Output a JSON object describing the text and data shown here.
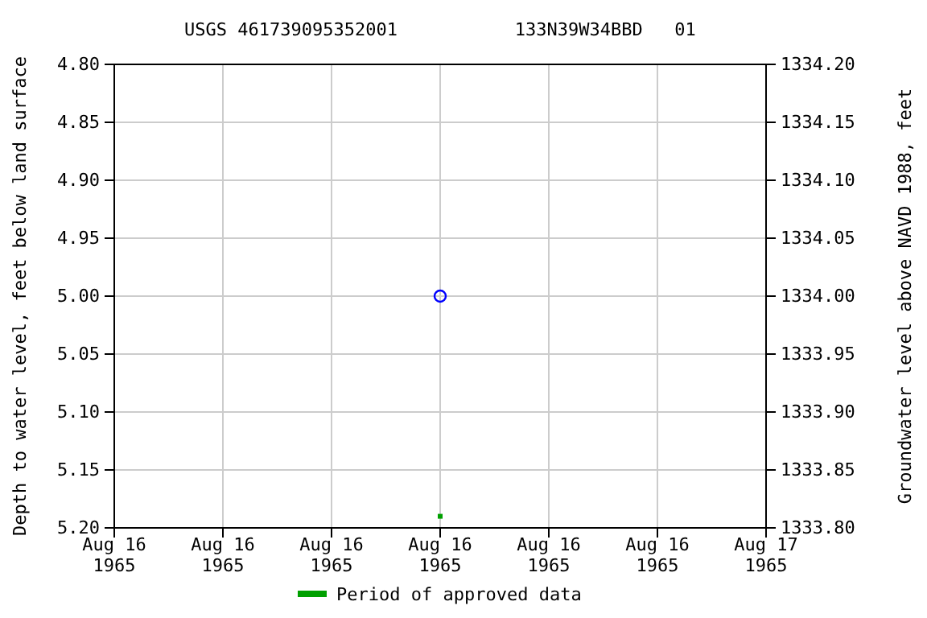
{
  "chart_data": {
    "type": "scatter",
    "title": "USGS 461739095352001           133N39W34BBD   01",
    "ylabel": "Depth to water level, feet below land surface",
    "y2label": "Groundwater level above NAVD 1988, feet",
    "x": [
      "1965-08-16T12:00"
    ],
    "series": [
      {
        "color": "#0000ff",
        "values": [
          5.0
        ],
        "marker": "circle"
      },
      {
        "name": "Period of approved data",
        "color": "#00a000",
        "values": [
          5.19
        ],
        "marker": "square"
      }
    ],
    "xlim": [
      "1965-08-16T00:00",
      "1965-08-17T00:00"
    ],
    "xticks": [
      {
        "value": "1965-08-16T00:00",
        "label": "Aug 16\n1965"
      },
      {
        "value": "1965-08-16T04:00",
        "label": "Aug 16\n1965"
      },
      {
        "value": "1965-08-16T08:00",
        "label": "Aug 16\n1965"
      },
      {
        "value": "1965-08-16T12:00",
        "label": "Aug 16\n1965"
      },
      {
        "value": "1965-08-16T16:00",
        "label": "Aug 16\n1965"
      },
      {
        "value": "1965-08-16T20:00",
        "label": "Aug 16\n1965"
      },
      {
        "value": "1965-08-17T00:00",
        "label": "Aug 17\n1965"
      }
    ],
    "ylim": [
      5.2,
      4.8
    ],
    "yticks": [
      {
        "value": 4.8,
        "label": "4.80"
      },
      {
        "value": 4.85,
        "label": "4.85"
      },
      {
        "value": 4.9,
        "label": "4.90"
      },
      {
        "value": 4.95,
        "label": "4.95"
      },
      {
        "value": 5.0,
        "label": "5.00"
      },
      {
        "value": 5.05,
        "label": "5.05"
      },
      {
        "value": 5.1,
        "label": "5.10"
      },
      {
        "value": 5.15,
        "label": "5.15"
      },
      {
        "value": 5.2,
        "label": "5.20"
      }
    ],
    "y2lim": [
      1333.8,
      1334.2
    ],
    "y2ticks": [
      {
        "value": 1334.2,
        "label": "1334.20"
      },
      {
        "value": 1334.15,
        "label": "1334.15"
      },
      {
        "value": 1334.1,
        "label": "1334.10"
      },
      {
        "value": 1334.05,
        "label": "1334.05"
      },
      {
        "value": 1334.0,
        "label": "1334.00"
      },
      {
        "value": 1333.95,
        "label": "1333.95"
      },
      {
        "value": 1333.9,
        "label": "1333.90"
      },
      {
        "value": 1333.85,
        "label": "1333.85"
      },
      {
        "value": 1333.8,
        "label": "1333.80"
      }
    ],
    "grid": true,
    "legend": "bottom"
  }
}
